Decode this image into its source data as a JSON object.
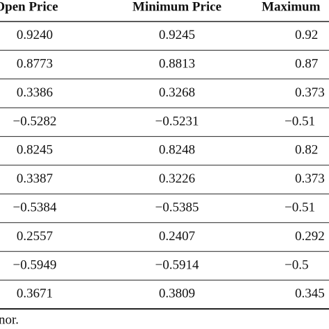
{
  "table": {
    "header": [
      "Open Price",
      "Minimum Price",
      "Maximum"
    ],
    "rows": [
      [
        "0.9240",
        "0.9245",
        "0.92"
      ],
      [
        "0.8773",
        "0.8813",
        "0.87"
      ],
      [
        "0.3386",
        "0.3268",
        "0.373"
      ],
      [
        "−0.5282",
        "−0.5231",
        "−0.51"
      ],
      [
        "0.8245",
        "0.8248",
        "0.82"
      ],
      [
        "0.3387",
        "0.3226",
        "0.373"
      ],
      [
        "−0.5384",
        "−0.5385",
        "−0.51"
      ],
      [
        "0.2557",
        "0.2407",
        "0.292"
      ],
      [
        "−0.5949",
        "−0.5914",
        "−0.5"
      ],
      [
        "0.3671",
        "0.3809",
        "0.345"
      ]
    ],
    "footer": "nor."
  }
}
